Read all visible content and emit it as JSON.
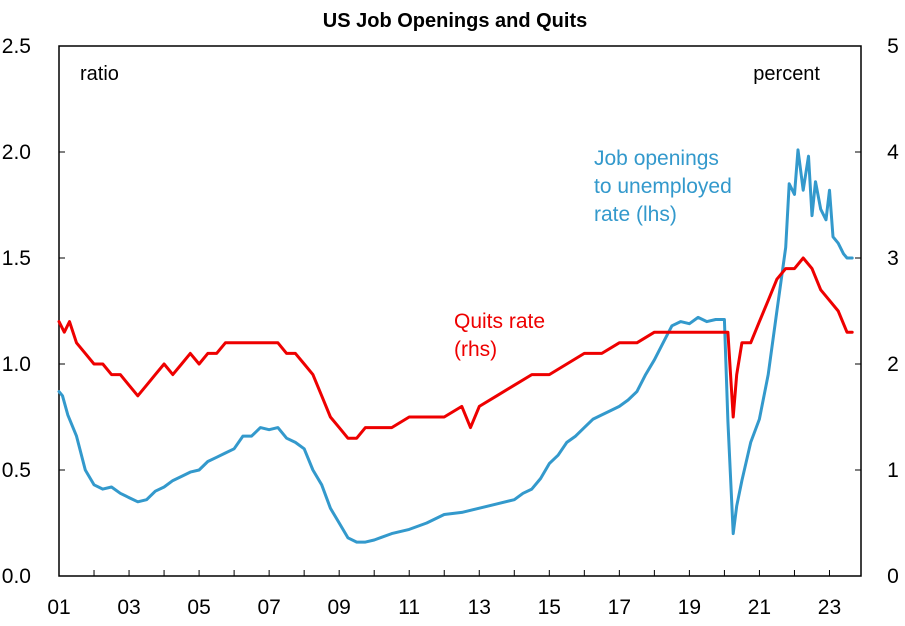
{
  "chart_data": {
    "type": "line",
    "title": "US Job Openings and Quits",
    "left_axis": {
      "unit_label": "ratio",
      "ylim": [
        0,
        2.5
      ],
      "ticks": [
        "0.0",
        "0.5",
        "1.0",
        "1.5",
        "2.0",
        "2.5"
      ]
    },
    "right_axis": {
      "unit_label": "percent",
      "ylim": [
        0,
        5
      ],
      "ticks": [
        "0",
        "1",
        "2",
        "3",
        "4",
        "5"
      ]
    },
    "x_axis": {
      "xlim": [
        2001.0,
        2023.9
      ],
      "ticks": [
        "01",
        "03",
        "05",
        "07",
        "09",
        "11",
        "13",
        "15",
        "17",
        "19",
        "21",
        "23"
      ],
      "tick_years": [
        2001,
        2003,
        2005,
        2007,
        2009,
        2011,
        2013,
        2015,
        2017,
        2019,
        2021,
        2023
      ]
    },
    "grid": false,
    "series": [
      {
        "name": "Job openings to unemployed rate (lhs)",
        "label_lines": [
          "Job openings",
          "to unemployed",
          "rate (lhs)"
        ],
        "axis": "left",
        "color": "#3399cc",
        "x": [
          2001.0,
          2001.1,
          2001.25,
          2001.5,
          2001.75,
          2002.0,
          2002.25,
          2002.5,
          2002.75,
          2003.0,
          2003.25,
          2003.5,
          2003.75,
          2004.0,
          2004.25,
          2004.5,
          2004.75,
          2005.0,
          2005.25,
          2005.5,
          2005.75,
          2006.0,
          2006.25,
          2006.5,
          2006.75,
          2007.0,
          2007.25,
          2007.5,
          2007.75,
          2008.0,
          2008.25,
          2008.5,
          2008.75,
          2009.0,
          2009.25,
          2009.5,
          2009.75,
          2010.0,
          2010.5,
          2011.0,
          2011.5,
          2012.0,
          2012.5,
          2013.0,
          2013.5,
          2014.0,
          2014.25,
          2014.5,
          2014.75,
          2015.0,
          2015.25,
          2015.5,
          2015.75,
          2016.0,
          2016.25,
          2016.5,
          2016.75,
          2017.0,
          2017.25,
          2017.5,
          2017.75,
          2018.0,
          2018.25,
          2018.5,
          2018.75,
          2019.0,
          2019.25,
          2019.5,
          2019.75,
          2020.0,
          2020.1,
          2020.25,
          2020.35,
          2020.5,
          2020.75,
          2021.0,
          2021.25,
          2021.5,
          2021.75,
          2021.85,
          2022.0,
          2022.1,
          2022.25,
          2022.4,
          2022.5,
          2022.6,
          2022.75,
          2022.9,
          2023.0,
          2023.1,
          2023.25,
          2023.4,
          2023.5,
          2023.65
        ],
        "values": [
          0.87,
          0.85,
          0.76,
          0.66,
          0.5,
          0.43,
          0.41,
          0.42,
          0.39,
          0.37,
          0.35,
          0.36,
          0.4,
          0.42,
          0.45,
          0.47,
          0.49,
          0.5,
          0.54,
          0.56,
          0.58,
          0.6,
          0.66,
          0.66,
          0.7,
          0.69,
          0.7,
          0.65,
          0.63,
          0.6,
          0.5,
          0.43,
          0.32,
          0.25,
          0.18,
          0.16,
          0.16,
          0.17,
          0.2,
          0.22,
          0.25,
          0.29,
          0.3,
          0.32,
          0.34,
          0.36,
          0.39,
          0.41,
          0.46,
          0.53,
          0.57,
          0.63,
          0.66,
          0.7,
          0.74,
          0.76,
          0.78,
          0.8,
          0.83,
          0.87,
          0.95,
          1.02,
          1.1,
          1.18,
          1.2,
          1.19,
          1.22,
          1.2,
          1.21,
          1.21,
          0.73,
          0.2,
          0.33,
          0.45,
          0.63,
          0.74,
          0.95,
          1.25,
          1.55,
          1.85,
          1.8,
          2.01,
          1.82,
          1.98,
          1.7,
          1.86,
          1.73,
          1.68,
          1.82,
          1.6,
          1.57,
          1.52,
          1.5,
          1.5
        ]
      },
      {
        "name": "Quits rate (rhs)",
        "label_lines": [
          "Quits rate",
          "(rhs)"
        ],
        "axis": "right",
        "color": "#ee0000",
        "x": [
          2001.0,
          2001.15,
          2001.3,
          2001.5,
          2001.75,
          2002.0,
          2002.25,
          2002.5,
          2002.75,
          2003.0,
          2003.25,
          2003.5,
          2003.75,
          2004.0,
          2004.25,
          2004.5,
          2004.75,
          2005.0,
          2005.25,
          2005.5,
          2005.75,
          2006.0,
          2006.25,
          2006.5,
          2006.75,
          2007.0,
          2007.25,
          2007.5,
          2007.75,
          2008.0,
          2008.25,
          2008.5,
          2008.75,
          2009.0,
          2009.25,
          2009.5,
          2009.75,
          2010.0,
          2010.5,
          2011.0,
          2011.5,
          2012.0,
          2012.5,
          2012.75,
          2013.0,
          2013.5,
          2014.0,
          2014.5,
          2015.0,
          2015.5,
          2016.0,
          2016.5,
          2017.0,
          2017.5,
          2018.0,
          2018.5,
          2019.0,
          2019.5,
          2020.0,
          2020.1,
          2020.25,
          2020.35,
          2020.5,
          2020.75,
          2021.0,
          2021.25,
          2021.5,
          2021.75,
          2022.0,
          2022.25,
          2022.5,
          2022.75,
          2023.0,
          2023.25,
          2023.5,
          2023.65
        ],
        "values": [
          2.4,
          2.3,
          2.4,
          2.2,
          2.1,
          2.0,
          2.0,
          1.9,
          1.9,
          1.8,
          1.7,
          1.8,
          1.9,
          2.0,
          1.9,
          2.0,
          2.1,
          2.0,
          2.1,
          2.1,
          2.2,
          2.2,
          2.2,
          2.2,
          2.2,
          2.2,
          2.2,
          2.1,
          2.1,
          2.0,
          1.9,
          1.7,
          1.5,
          1.4,
          1.3,
          1.3,
          1.4,
          1.4,
          1.4,
          1.5,
          1.5,
          1.5,
          1.6,
          1.4,
          1.6,
          1.7,
          1.8,
          1.9,
          1.9,
          2.0,
          2.1,
          2.1,
          2.2,
          2.2,
          2.3,
          2.3,
          2.3,
          2.3,
          2.3,
          2.3,
          1.5,
          1.9,
          2.2,
          2.2,
          2.4,
          2.6,
          2.8,
          2.9,
          2.9,
          3.0,
          2.9,
          2.7,
          2.6,
          2.5,
          2.3,
          2.3
        ]
      }
    ]
  }
}
